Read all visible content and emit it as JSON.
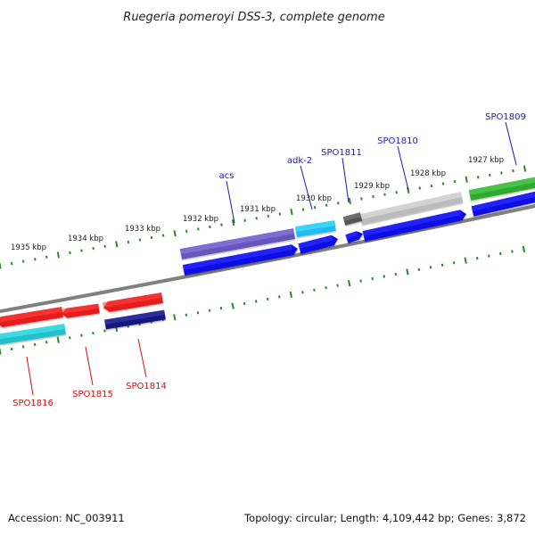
{
  "title": "Ruegeria pomeroyi DSS-3, complete genome",
  "footer": {
    "accession": "Accession: NC_003911",
    "topology": "Topology: circular; Length: 4,109,442 bp; Genes: 3,872"
  },
  "colors": {
    "forward_label": "#1a1aaa",
    "reverse_label": "#cc1111",
    "tick": "#2a8a2a",
    "backbone": "#808080"
  },
  "ticks": [
    {
      "label": "1927 kbp"
    },
    {
      "label": "1928 kbp"
    },
    {
      "label": "1929 kbp"
    },
    {
      "label": "1930 kbp"
    },
    {
      "label": "1931 kbp"
    },
    {
      "label": "1932 kbp"
    },
    {
      "label": "1933 kbp"
    },
    {
      "label": "1934 kbp"
    },
    {
      "label": "1935 kbp"
    }
  ],
  "genes": [
    {
      "label": "SPO1809",
      "strand": "forward",
      "color": "#2ea82e"
    },
    {
      "label": "SPO1810",
      "strand": "forward",
      "color": "#bbbbbb"
    },
    {
      "label": "SPO1811",
      "strand": "forward",
      "color": "#555555"
    },
    {
      "label": "adk-2",
      "strand": "forward",
      "color": "#22bbee"
    },
    {
      "label": "acs",
      "strand": "forward",
      "color": "#6655bb"
    },
    {
      "label": "SPO1814",
      "strand": "reverse",
      "color": "#e61a1a"
    },
    {
      "label": "SPO1815",
      "strand": "reverse",
      "color": "#e61a1a"
    },
    {
      "label": "SPO1816",
      "strand": "reverse",
      "color": "#e61a1a"
    }
  ],
  "cds_color": "#0a0ae6",
  "reverse_cds_colors": [
    "#141480",
    "#22c0c8"
  ]
}
